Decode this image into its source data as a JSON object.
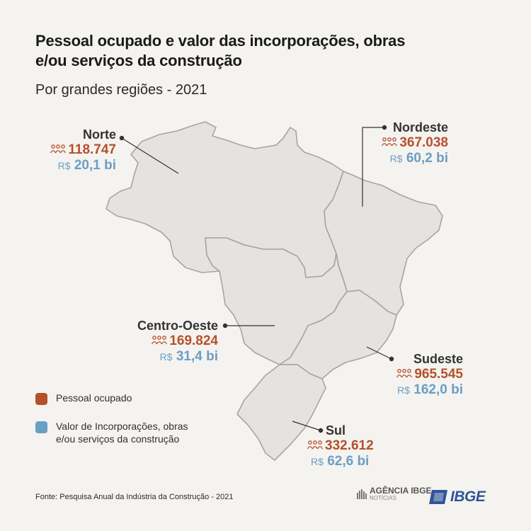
{
  "header": {
    "title": "Pessoal ocupado e valor das incorporações, obras e/ou serviços da construção",
    "subtitle": "Por grandes regiões - 2021"
  },
  "colors": {
    "people": "#b4512a",
    "value": "#6a9fc4",
    "map_fill": "#e4e3e1",
    "map_border": "#a5a5a5"
  },
  "regions": [
    {
      "name": "Norte",
      "people": "118.747",
      "currency": "R$",
      "value": "20,1 bi"
    },
    {
      "name": "Nordeste",
      "people": "367.038",
      "currency": "R$",
      "value": "60,2 bi"
    },
    {
      "name": "Centro-Oeste",
      "people": "169.824",
      "currency": "R$",
      "value": "31,4 bi"
    },
    {
      "name": "Sudeste",
      "people": "965.545",
      "currency": "R$",
      "value": "162,0 bi"
    },
    {
      "name": "Sul",
      "people": "332.612",
      "currency": "R$",
      "value": "62,6 bi"
    }
  ],
  "legend": [
    {
      "label": "Pessoal ocupado",
      "color": "#b4512a"
    },
    {
      "label": "Valor de Incorporações, obras e/ou serviços da construção",
      "color": "#6a9fc4"
    }
  ],
  "footer": {
    "source": "Fonte: Pesquisa Anual da Indústria da Construção - 2021",
    "agencia_title": "AGÊNCIA IBGE",
    "agencia_sub": "NOTÍCIAS",
    "ibge_logo_text": "IBGE"
  }
}
